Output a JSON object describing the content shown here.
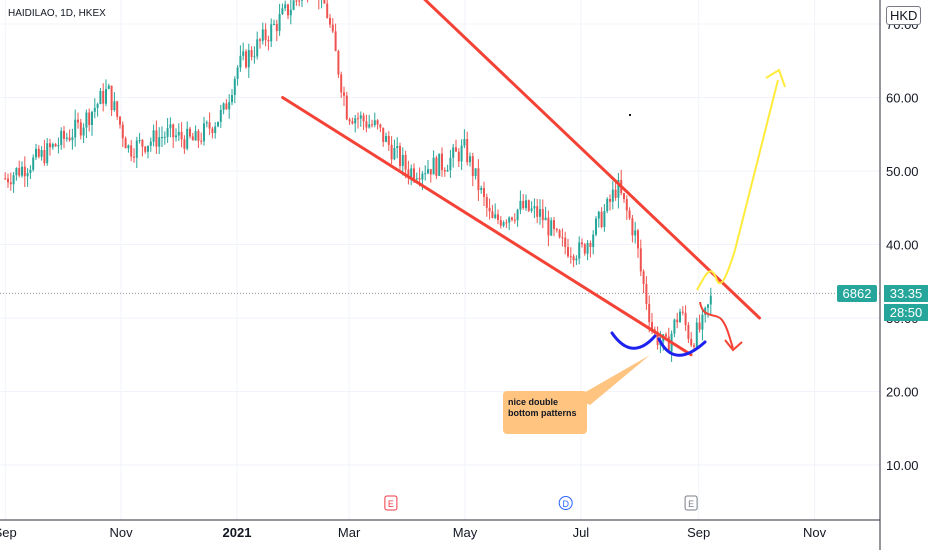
{
  "header": {
    "symbol": "HAIDILAO, 1D, HKEX",
    "currency": "HKD"
  },
  "price_scale": {
    "last_price": "33.35",
    "countdown": "28:50",
    "symbol_tag": "6862"
  },
  "annotation": {
    "text": "nice double bottom patterns"
  },
  "events": [
    {
      "label": "E"
    },
    {
      "label": "D"
    },
    {
      "label": "E"
    }
  ],
  "colors": {
    "up": "#26a69a",
    "down": "#ef5350",
    "channel": "#f44336",
    "bull_path": "#ffeb3b",
    "bear_path": "#f44336",
    "bottoms": "#1e22f0",
    "callout": "#ffc480"
  },
  "chart_data": {
    "type": "candlestick",
    "title": "HAIDILAO, 1D, HKEX",
    "ylim": [
      3,
      76
    ],
    "y_ticks": [
      10,
      20,
      30,
      40,
      50,
      60,
      70
    ],
    "y_tick_labels": [
      "10.00",
      "20.00",
      "30.00",
      "40.00",
      "50.00",
      "60.00",
      "70.00"
    ],
    "x_tick_labels": [
      "Sep",
      "Nov",
      "2021",
      "Mar",
      "May",
      "Jul",
      "Sep",
      "Nov"
    ],
    "last_price": 33.35,
    "price_path": [
      [
        "2020-09-01",
        49
      ],
      [
        "2020-09-20",
        52
      ],
      [
        "2020-10-10",
        56
      ],
      [
        "2020-10-25",
        61
      ],
      [
        "2020-11-05",
        53
      ],
      [
        "2020-11-25",
        55
      ],
      [
        "2020-12-10",
        54
      ],
      [
        "2020-12-25",
        58
      ],
      [
        "2021-01-01",
        64
      ],
      [
        "2021-01-15",
        68
      ],
      [
        "2021-01-28",
        72
      ],
      [
        "2021-02-10",
        76
      ],
      [
        "2021-02-17",
        72
      ],
      [
        "2021-02-28",
        58
      ],
      [
        "2021-03-15",
        56
      ],
      [
        "2021-04-01",
        50
      ],
      [
        "2021-04-20",
        51
      ],
      [
        "2021-05-01",
        53
      ],
      [
        "2021-05-15",
        43
      ],
      [
        "2021-05-31",
        45
      ],
      [
        "2021-06-10",
        44
      ],
      [
        "2021-06-20",
        40
      ],
      [
        "2021-07-01",
        39
      ],
      [
        "2021-07-15",
        45
      ],
      [
        "2021-07-20",
        48
      ],
      [
        "2021-07-30",
        41
      ],
      [
        "2021-08-01",
        37
      ],
      [
        "2021-08-08",
        28
      ],
      [
        "2021-08-15",
        26
      ],
      [
        "2021-08-22",
        31
      ],
      [
        "2021-08-28",
        27
      ],
      [
        "2021-09-03",
        29
      ],
      [
        "2021-09-08",
        33
      ]
    ],
    "lines": [
      {
        "name": "",
        "from": [
          "2021-01-25",
          60
        ],
        "to": [
          "2021-08-28",
          25
        ]
      },
      {
        "name": "",
        "from": [
          "2021-03-30",
          76
        ],
        "to": [
          "2021-10-03",
          30
        ]
      }
    ],
    "events": [
      {
        "date": "2021-03-23",
        "label": "E"
      },
      {
        "date": "2021-06-23",
        "label": "D"
      },
      {
        "date": "2021-08-28",
        "label": "E"
      }
    ]
  }
}
